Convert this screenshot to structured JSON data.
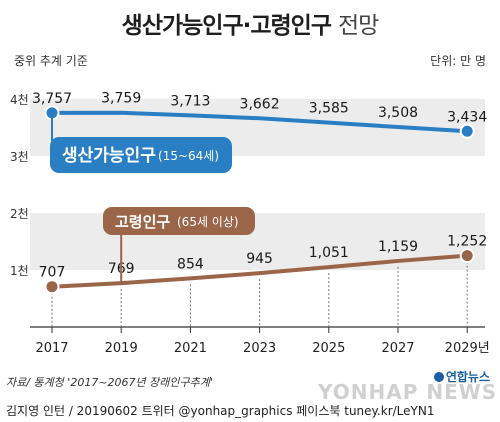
{
  "header": {
    "title_main": "생산가능인구·고령인구",
    "title_suffix": "전망",
    "note_left": "중위 추계 기준",
    "note_right": "단위: 만 명"
  },
  "chart_data": {
    "type": "line",
    "x": [
      "2017",
      "2019",
      "2021",
      "2023",
      "2025",
      "2027",
      "2029년"
    ],
    "y_ticks": [
      "1천",
      "2천",
      "3천",
      "4천"
    ],
    "ylim": [
      0,
      4000
    ],
    "series": [
      {
        "name": "생산가능인구",
        "detail": "(15~64세)",
        "color": "#2a7fc4",
        "values": [
          3757,
          3759,
          3713,
          3662,
          3585,
          3508,
          3434
        ],
        "labels": [
          "3,757",
          "3,759",
          "3,713",
          "3,662",
          "3,585",
          "3,508",
          "3,434"
        ]
      },
      {
        "name": "고령인구",
        "detail": "(65세 이상)",
        "color": "#9a6549",
        "values": [
          707,
          769,
          854,
          945,
          1051,
          1159,
          1252
        ],
        "labels": [
          "707",
          "769",
          "854",
          "945",
          "1,051",
          "1,159",
          "1,252"
        ]
      }
    ]
  },
  "footer": {
    "source": "자료/ 통계청 '2017~2067년 장래인구추계'",
    "credit": "김지영 인턴 / 20190602 트위터 @yonhap_graphics  페이스북 tuney.kr/LeYN1",
    "logo": "연합뉴스",
    "watermark": "YONHAP NEWS"
  }
}
